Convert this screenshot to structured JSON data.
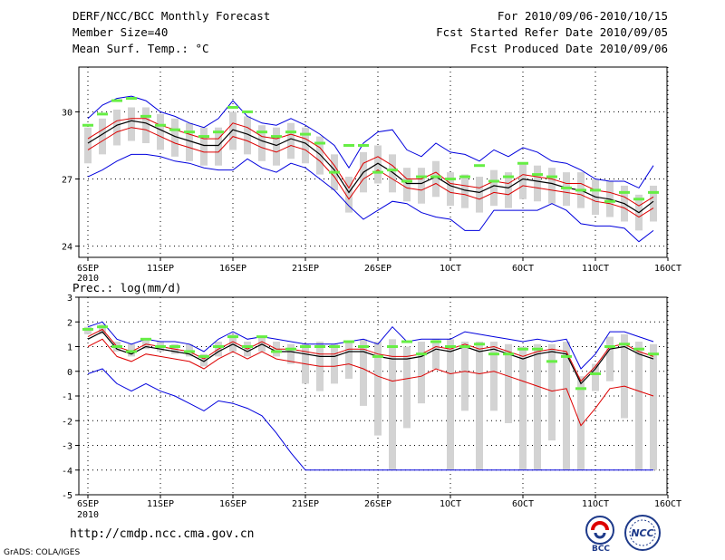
{
  "header": {
    "left": [
      "DERF/NCC/BCC Monthly Forecast",
      "Member Size=40",
      "Mean Surf. Temp.: °C"
    ],
    "right": [
      "For 2010/09/06-2010/10/15",
      "Fcst Started Refer Date 2010/09/05",
      "Fcst Produced Date 2010/09/06"
    ]
  },
  "url": "http://cmdp.ncc.cma.gov.cn",
  "footer": "GrADS: COLA/IGES",
  "logos": [
    "BCC",
    "NCC"
  ],
  "colors": {
    "box": "#d3d3d3",
    "median": "#66ee44",
    "extreme": "#0000dd",
    "spread": "#dd0000",
    "mean": "#000000",
    "grid": "#000000"
  },
  "chart_data": [
    {
      "type": "line",
      "title": "Mean Surf. Temp.: °C",
      "x_ticks": [
        "6SEP",
        "11SEP",
        "16SEP",
        "21SEP",
        "26SEP",
        "1OCT",
        "6OCT",
        "11OCT",
        "16OCT"
      ],
      "x_year": "2010",
      "days": 40,
      "ylim": [
        23.5,
        32
      ],
      "yticks": [
        24,
        27,
        30
      ],
      "series": [
        {
          "name": "max",
          "values": [
            27.1,
            27.4,
            27.8,
            28.1,
            28.1,
            28.0,
            27.8,
            27.7,
            27.5,
            27.4,
            27.4,
            27.9,
            27.5,
            27.3,
            27.7,
            27.5,
            27.0,
            26.5,
            25.8,
            25.2,
            25.6,
            26.0,
            25.9,
            25.5,
            25.3,
            25.2,
            24.7,
            24.7,
            25.6,
            25.6,
            25.6,
            25.6,
            25.9,
            25.6,
            25.0,
            24.9,
            24.9,
            24.8,
            24.2,
            24.7
          ]
        },
        {
          "name": "spread_upper",
          "values": [
            28.8,
            29.2,
            29.6,
            29.7,
            29.7,
            29.4,
            29.2,
            29.0,
            28.8,
            28.8,
            29.5,
            29.3,
            28.9,
            28.8,
            29.0,
            28.8,
            28.4,
            27.6,
            26.6,
            27.7,
            28.0,
            27.6,
            27.0,
            27.0,
            27.3,
            26.8,
            26.7,
            26.6,
            26.9,
            26.8,
            27.2,
            27.1,
            27.0,
            26.8,
            26.8,
            26.5,
            26.4,
            26.2,
            25.8,
            26.2
          ]
        },
        {
          "name": "mean",
          "values": [
            28.6,
            29.0,
            29.4,
            29.6,
            29.5,
            29.2,
            28.9,
            28.7,
            28.5,
            28.5,
            29.2,
            29.0,
            28.7,
            28.5,
            28.8,
            28.6,
            28.1,
            27.4,
            26.4,
            27.3,
            27.7,
            27.3,
            26.8,
            26.8,
            27.1,
            26.7,
            26.5,
            26.4,
            26.7,
            26.6,
            27.0,
            26.9,
            26.8,
            26.6,
            26.5,
            26.2,
            26.1,
            25.9,
            25.5,
            26.0
          ]
        },
        {
          "name": "spread_lower",
          "values": [
            28.3,
            28.7,
            29.1,
            29.3,
            29.2,
            28.9,
            28.6,
            28.4,
            28.2,
            28.2,
            28.9,
            28.7,
            28.4,
            28.2,
            28.5,
            28.3,
            27.8,
            27.1,
            26.1,
            27.0,
            27.4,
            27.0,
            26.6,
            26.5,
            26.8,
            26.4,
            26.3,
            26.1,
            26.4,
            26.3,
            26.7,
            26.6,
            26.5,
            26.4,
            26.3,
            26.0,
            25.9,
            25.7,
            25.3,
            25.7
          ]
        },
        {
          "name": "min",
          "values": [
            29.7,
            30.3,
            30.6,
            30.7,
            30.5,
            30.0,
            29.8,
            29.5,
            29.3,
            29.7,
            30.5,
            29.8,
            29.5,
            29.4,
            29.7,
            29.4,
            29.0,
            28.5,
            27.5,
            28.6,
            29.1,
            29.2,
            28.3,
            28.0,
            28.6,
            28.2,
            28.1,
            27.8,
            28.3,
            28.0,
            28.4,
            28.2,
            27.8,
            27.7,
            27.4,
            27.0,
            26.9,
            26.9,
            26.6,
            27.6
          ]
        }
      ],
      "median_marks": [
        29.4,
        29.9,
        30.5,
        30.6,
        29.8,
        29.4,
        29.2,
        29.1,
        28.9,
        29.1,
        30.2,
        30.0,
        29.1,
        28.9,
        29.1,
        29.0,
        28.6,
        27.3,
        28.5,
        28.5,
        27.3,
        27.4,
        26.9,
        27.1,
        27.1,
        27.0,
        27.1,
        27.6,
        26.9,
        27.1,
        27.7,
        27.2,
        27.1,
        26.6,
        26.5,
        26.5,
        26.0,
        26.4,
        26.1,
        26.4
      ]
    },
    {
      "type": "line",
      "title": "Prec.: log(mm/d)",
      "x_ticks": [
        "6SEP",
        "11SEP",
        "16SEP",
        "21SEP",
        "26SEP",
        "1OCT",
        "6OCT",
        "11OCT",
        "16OCT"
      ],
      "x_year": "2010",
      "days": 40,
      "ylim": [
        -5,
        3
      ],
      "yticks": [
        -5,
        -4,
        -3,
        -2,
        -1,
        0,
        1,
        2,
        3
      ],
      "series": [
        {
          "name": "max",
          "values": [
            1.8,
            2.0,
            1.3,
            1.1,
            1.3,
            1.2,
            1.2,
            1.1,
            0.8,
            1.3,
            1.6,
            1.3,
            1.4,
            1.3,
            1.2,
            1.1,
            1.1,
            1.1,
            1.2,
            1.3,
            1.1,
            1.8,
            1.2,
            1.3,
            1.3,
            1.3,
            1.6,
            1.5,
            1.4,
            1.3,
            1.2,
            1.3,
            1.2,
            1.3,
            0.1,
            0.7,
            1.6,
            1.6,
            1.4,
            1.2
          ]
        },
        {
          "name": "min",
          "values": [
            -0.1,
            0.1,
            -0.5,
            -0.8,
            -0.5,
            -0.8,
            -1.0,
            -1.3,
            -1.6,
            -1.2,
            -1.3,
            -1.5,
            -1.8,
            -2.5,
            -3.3,
            -4.0,
            -4.0,
            -4.0,
            -4.0,
            -4.0,
            -4.0,
            -4.0,
            -4.0,
            -4.0,
            -4.0,
            -4.0,
            -4.0,
            -4.0,
            -4.0,
            -4.0,
            -4.0,
            -4.0,
            -4.0,
            -4.0,
            -4.0,
            -4.0,
            -4.0,
            -4.0,
            -4.0,
            -4.0
          ]
        },
        {
          "name": "spread_upper",
          "values": [
            1.4,
            1.7,
            1.0,
            0.8,
            1.1,
            1.0,
            0.9,
            0.8,
            0.5,
            0.9,
            1.2,
            0.9,
            1.2,
            0.9,
            0.9,
            0.8,
            0.7,
            0.7,
            0.9,
            0.9,
            0.7,
            0.6,
            0.6,
            0.7,
            1.0,
            0.9,
            1.1,
            0.9,
            1.0,
            0.8,
            0.6,
            0.8,
            0.9,
            0.8,
            -0.4,
            0.2,
            1.0,
            1.1,
            0.8,
            0.6
          ]
        },
        {
          "name": "mean",
          "values": [
            1.3,
            1.6,
            0.9,
            0.7,
            1.0,
            0.9,
            0.8,
            0.7,
            0.4,
            0.8,
            1.1,
            0.8,
            1.1,
            0.8,
            0.8,
            0.7,
            0.6,
            0.6,
            0.8,
            0.8,
            0.6,
            0.5,
            0.5,
            0.6,
            0.9,
            0.8,
            1.0,
            0.8,
            0.9,
            0.7,
            0.5,
            0.7,
            0.8,
            0.7,
            -0.5,
            0.1,
            0.9,
            1.0,
            0.7,
            0.5
          ]
        },
        {
          "name": "spread_lower",
          "values": [
            1.0,
            1.3,
            0.6,
            0.4,
            0.7,
            0.6,
            0.5,
            0.4,
            0.1,
            0.5,
            0.8,
            0.5,
            0.8,
            0.5,
            0.4,
            0.3,
            0.2,
            0.2,
            0.3,
            0.1,
            -0.2,
            -0.4,
            -0.3,
            -0.2,
            0.1,
            -0.1,
            0.0,
            -0.1,
            0.0,
            -0.2,
            -0.4,
            -0.6,
            -0.8,
            -0.7,
            -2.2,
            -1.5,
            -0.7,
            -0.6,
            -0.8,
            -1.0
          ]
        }
      ],
      "box_lower": [
        1.5,
        1.5,
        0.8,
        0.6,
        0.9,
        0.8,
        0.7,
        0.6,
        0.2,
        0.6,
        0.8,
        0.6,
        0.8,
        0.6,
        0.3,
        -0.5,
        -0.8,
        -0.5,
        -0.3,
        -1.4,
        -2.6,
        -4.0,
        -2.3,
        -1.3,
        0.1,
        -4.0,
        -1.6,
        -4.0,
        -1.6,
        -2.1,
        -4.0,
        -4.0,
        -2.8,
        -4.0,
        -4.0,
        -0.8,
        -0.4,
        -1.9,
        -4.0,
        -4.0
      ],
      "box_upper": [
        1.8,
        1.9,
        1.2,
        1.1,
        1.3,
        1.2,
        1.1,
        1.1,
        0.7,
        1.2,
        1.5,
        1.2,
        1.4,
        1.2,
        1.1,
        1.1,
        1.2,
        1.1,
        1.2,
        1.3,
        1.2,
        1.3,
        1.0,
        1.2,
        1.3,
        1.3,
        1.2,
        1.2,
        1.2,
        1.1,
        1.0,
        1.1,
        1.1,
        1.2,
        -0.2,
        0.3,
        1.4,
        1.5,
        1.2,
        1.1
      ],
      "median_marks": [
        1.7,
        1.8,
        1.0,
        0.8,
        1.3,
        1.0,
        1.0,
        0.8,
        0.6,
        1.0,
        1.4,
        1.0,
        1.4,
        0.8,
        0.9,
        1.0,
        1.0,
        1.0,
        1.2,
        1.0,
        0.6,
        1.0,
        1.2,
        0.7,
        1.2,
        1.0,
        1.0,
        1.1,
        0.7,
        0.7,
        0.9,
        0.9,
        0.4,
        0.6,
        -0.7,
        -0.1,
        1.0,
        1.1,
        0.9,
        0.7
      ]
    }
  ]
}
